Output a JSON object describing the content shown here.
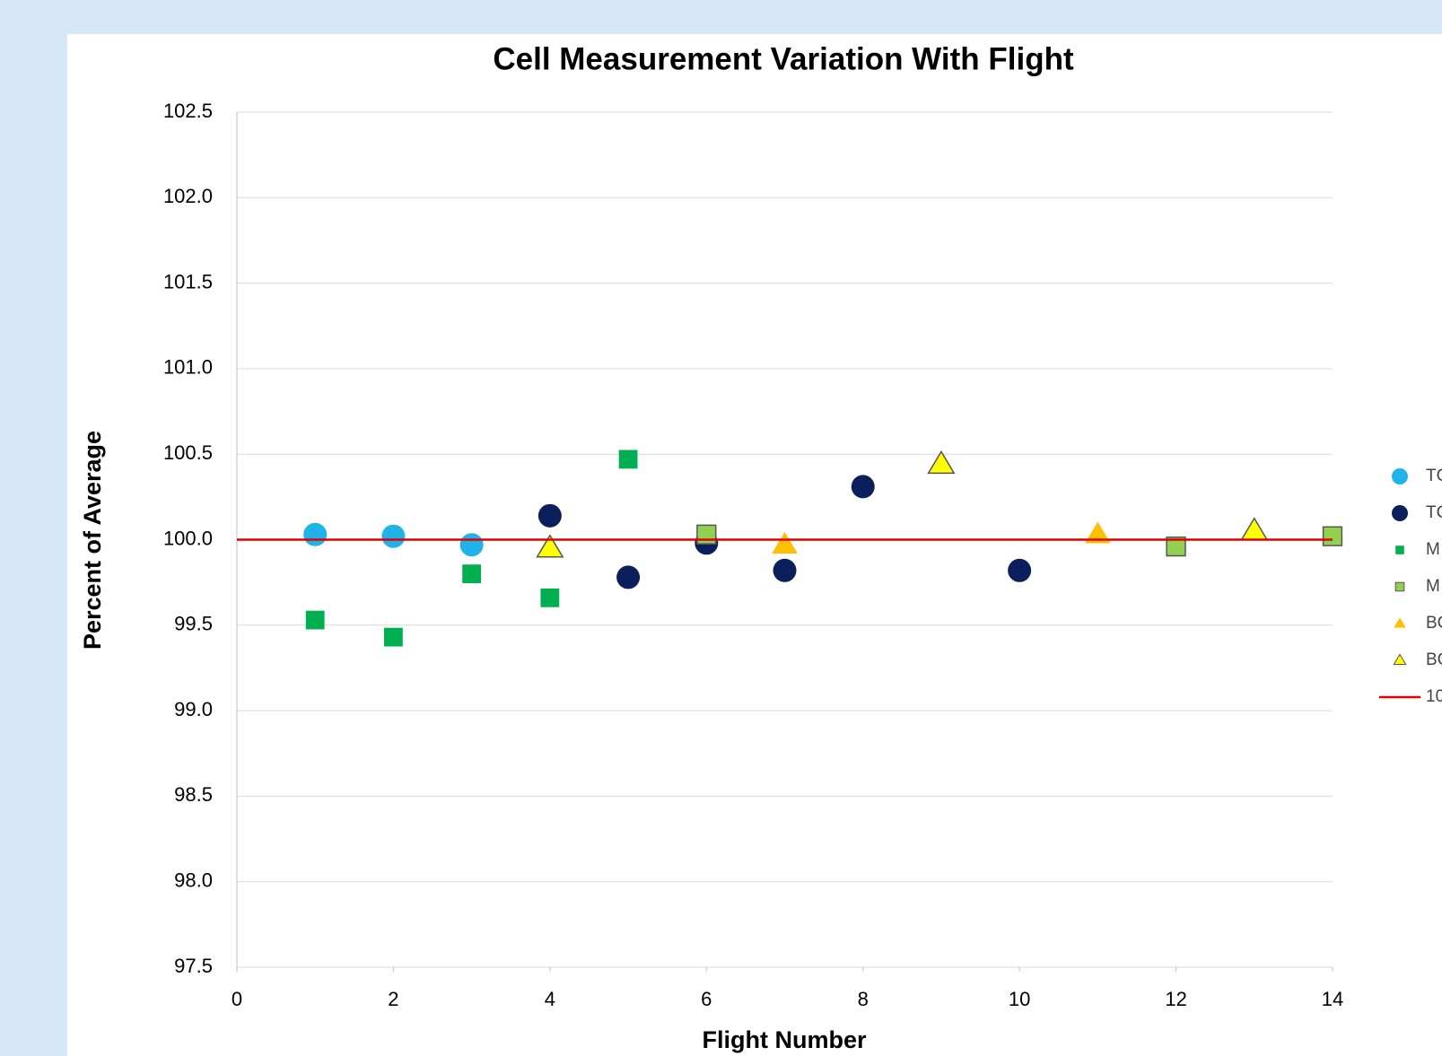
{
  "chart_data": {
    "type": "scatter",
    "title": "Cell Measurement Variation With Flight",
    "x_label": "Flight Number",
    "y_label": "Percent of Average",
    "xlim": [
      0,
      14
    ],
    "xticks": [
      0,
      2,
      4,
      6,
      8,
      10,
      12,
      14
    ],
    "ylim": [
      97.5,
      102.5
    ],
    "yticks": [
      97.5,
      {
        "value": 98,
        "label": "98.0"
      },
      98.5,
      {
        "value": 99,
        "label": "99.0"
      },
      99.5,
      {
        "value": 100,
        "label": "100.0"
      },
      100.5,
      {
        "value": 101,
        "label": "101.0"
      },
      101.5,
      {
        "value": 102,
        "label": "102.0"
      },
      102.5
    ],
    "grid": true,
    "legend": "right",
    "series": [
      {
        "name": "TC",
        "color": "#1fb3e9",
        "marker": "circle",
        "x": [
          1,
          2,
          3
        ],
        "values": [
          100.03,
          100.02,
          99.97
        ]
      },
      {
        "name": "TC",
        "color": "#0b1f5c",
        "marker": "circle",
        "x": [
          4,
          5,
          6,
          7,
          8,
          10
        ],
        "values": [
          100.14,
          99.78,
          99.98,
          99.82,
          100.31,
          99.82
        ]
      },
      {
        "name": "M",
        "color": "#00b050",
        "marker": "square",
        "x": [
          1,
          2,
          3,
          4,
          5
        ],
        "values": [
          99.53,
          99.43,
          99.8,
          99.66,
          100.47
        ]
      },
      {
        "name": "M",
        "color": "#92d050",
        "marker": "square",
        "x": [
          6,
          12,
          14
        ],
        "values": [
          100.03,
          99.96,
          100.02
        ]
      },
      {
        "name": "BC",
        "color": "#ffc000",
        "marker": "triangle",
        "x": [
          7,
          11
        ],
        "values": [
          99.97,
          100.03
        ]
      },
      {
        "name": "BC",
        "color": "#ffff00",
        "marker": "triangle",
        "x": [
          4,
          9,
          13
        ],
        "values": [
          99.95,
          100.44,
          100.05
        ]
      },
      {
        "name": "10",
        "color": "#e00000",
        "marker": "line",
        "x": [
          0,
          14
        ],
        "values": [
          100,
          100
        ]
      }
    ]
  }
}
